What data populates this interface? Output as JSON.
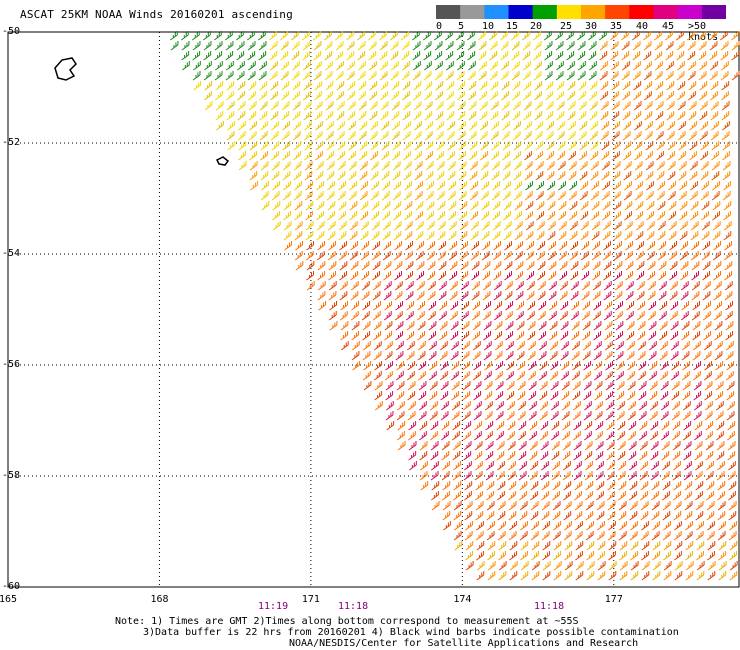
{
  "header": {
    "title": "ASCAT 25KM NOAA Winds 20160201  ascending"
  },
  "legend": {
    "values": [
      "0",
      "5",
      "10",
      "15",
      "20",
      "25",
      "30",
      "35",
      "40",
      "45",
      ">50 knots"
    ],
    "colors": [
      "#555555",
      "#999999",
      "#1e90ff",
      "#0000cd",
      "#00a000",
      "#ffe000",
      "#ffa500",
      "#ff4500",
      "#ff0000",
      "#e00080",
      "#cc00cc",
      "#7000a0"
    ]
  },
  "axes": {
    "lat_labels": [
      "-50",
      "-52",
      "-54",
      "-56",
      "-58",
      "-60"
    ],
    "lat_values": [
      -50,
      -52,
      -54,
      -56,
      -58,
      -60
    ],
    "lon_labels": [
      "165",
      "168",
      "171",
      "174",
      "177"
    ],
    "lon_values": [
      165,
      168,
      171,
      174,
      177
    ],
    "lon_range": [
      165,
      179.5
    ],
    "lat_range": [
      -50,
      -60
    ]
  },
  "pass_times": [
    "11:19",
    "11:18",
    "11:18"
  ],
  "footer": {
    "note_line1": "Note: 1) Times are GMT 2)Times along bottom correspond to measurement at ~55S",
    "note_line2": "3)Data buffer is 22 hrs from 20160201 4) Black wind barbs indicate possible contamination",
    "credit": "NOAA/NESDIS/Center for Satellite Applications and Research"
  },
  "map_features": {
    "islands": [
      "auckland-islands",
      "campbell-island"
    ],
    "swath_edge": "western swath boundary runs diagonally from the top near 168E to the bottom near 174.5E",
    "wind_regions": [
      {
        "area": "northwest corner near 168-170E, -50 to -51",
        "speed_range_knots": "15-20",
        "color": "#00a000"
      },
      {
        "area": "north and central band -50 to -54",
        "speed_range_knots": "20-30",
        "color": "#ffe000"
      },
      {
        "area": "southern half -54 to -60",
        "speed_range_knots": "30-40",
        "color": "#ff4500"
      },
      {
        "area": "core near -55 to -58, 173-177E",
        "speed_range_knots": "35-40",
        "color": "#e0104a"
      }
    ]
  }
}
